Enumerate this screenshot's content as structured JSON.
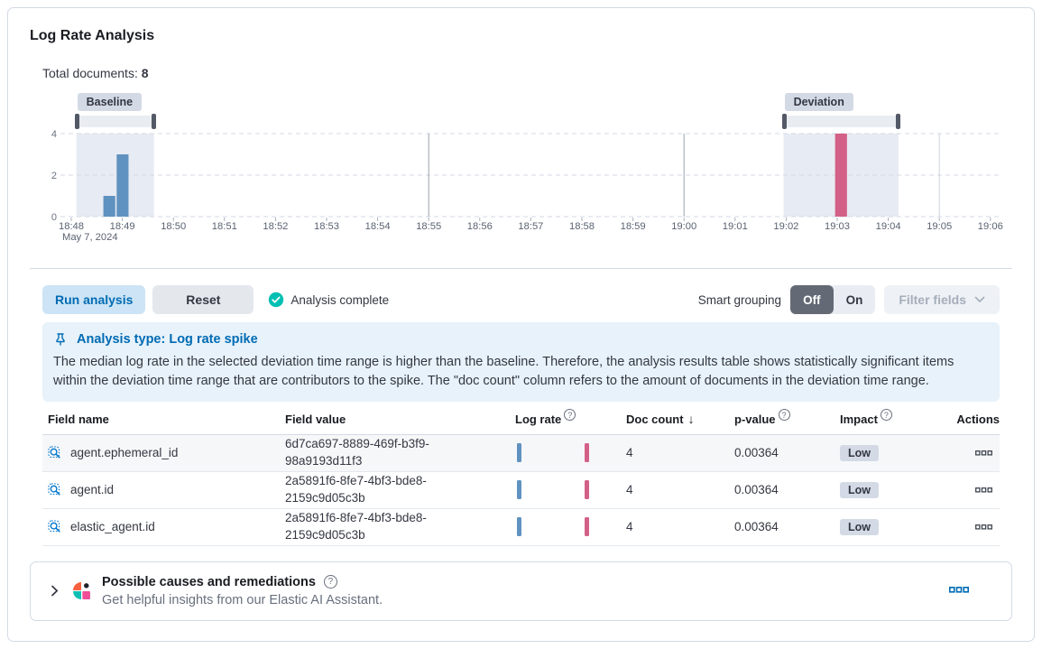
{
  "header": {
    "title": "Log Rate Analysis"
  },
  "summary": {
    "label": "Total documents:",
    "value": "8"
  },
  "chart_data": {
    "type": "bar",
    "title": "Document count histogram with baseline and deviation time range selections",
    "x_ticks": [
      "18:48",
      "18:49",
      "18:50",
      "18:51",
      "18:52",
      "18:53",
      "18:54",
      "18:55",
      "18:56",
      "18:57",
      "18:58",
      "18:59",
      "19:00",
      "19:01",
      "19:02",
      "19:03",
      "19:04",
      "19:05",
      "19:06"
    ],
    "x_sub_label": "May 7, 2024",
    "y_ticks": [
      0,
      2,
      4
    ],
    "ylim": [
      0,
      4
    ],
    "grid": "horizontal dashed at 0/2/4, vertical at 5-minute marks",
    "vertical_gridlines": [
      {
        "tick": "18:55",
        "color": "#9ba2ad"
      },
      {
        "tick": "19:00",
        "color": "#9ba2ad"
      },
      {
        "tick": "19:05",
        "color": "#ced2d9"
      }
    ],
    "bars": [
      {
        "series": "baseline",
        "start_min": 0.62,
        "end_min": 0.87,
        "value": 1
      },
      {
        "series": "baseline",
        "start_min": 0.88,
        "end_min": 1.13,
        "value": 3
      },
      {
        "series": "deviation",
        "start_min": 14.95,
        "end_min": 15.2,
        "value": 4
      }
    ],
    "baseline_window": {
      "label": "Baseline",
      "start_min": 0.1,
      "end_min": 1.62
    },
    "deviation_window": {
      "label": "Deviation",
      "start_min": 13.95,
      "end_min": 16.2
    },
    "colors": {
      "baseline": "#6092C0",
      "deviation": "#D36086",
      "selection": "#E7EBF3"
    }
  },
  "toolbar": {
    "run_label": "Run analysis",
    "reset_label": "Reset",
    "status_label": "Analysis complete",
    "smart_grouping_label": "Smart grouping",
    "off_label": "Off",
    "on_label": "On",
    "filter_fields_label": "Filter fields"
  },
  "callout": {
    "title": "Analysis type: Log rate spike",
    "body": "The median log rate in the selected deviation time range is higher than the baseline. Therefore, the analysis results table shows statistically significant items within the deviation time range that are contributors to the spike. The \"doc count\" column refers to the amount of documents in the deviation time range."
  },
  "table": {
    "columns": {
      "field_name": "Field name",
      "field_value": "Field value",
      "log_rate": "Log rate",
      "doc_count": "Doc count",
      "p_value": "p-value",
      "impact": "Impact",
      "actions": "Actions"
    },
    "sort": {
      "column": "Doc count",
      "direction": "desc"
    },
    "rows": [
      {
        "name": "agent.ephemeral_id",
        "value": "6d7ca697-8889-469f-b3f9-98a9193d11f3",
        "doc_count": "4",
        "p_value": "0.00364",
        "impact": "Low"
      },
      {
        "name": "agent.id",
        "value": "2a5891f6-8fe7-4bf3-bde8-2159c9d05c3b",
        "doc_count": "4",
        "p_value": "0.00364",
        "impact": "Low"
      },
      {
        "name": "elastic_agent.id",
        "value": "2a5891f6-8fe7-4bf3-bde8-2159c9d05c3b",
        "doc_count": "4",
        "p_value": "0.00364",
        "impact": "Low"
      }
    ]
  },
  "ai_panel": {
    "title": "Possible causes and remediations",
    "subtitle": "Get helpful insights from our Elastic AI Assistant."
  }
}
